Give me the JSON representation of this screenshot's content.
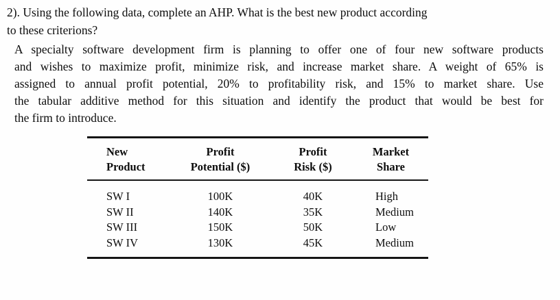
{
  "question": {
    "lines": [
      "2). Using the following data, complete an AHP.  What is the best new product according",
      "to these criterions?"
    ]
  },
  "problem_statement": {
    "lines": [
      "A specialty software development firm is planning to offer one of four new software products",
      "and wishes to maximize profit, minimize risk, and increase market share. A weight of 65% is",
      "assigned to annual profit potential, 20% to profitability risk, and 15% to market share. Use",
      "the tabular additive method for this situation and identify the product that would be best for",
      "the firm to introduce."
    ]
  },
  "table": {
    "headers": [
      {
        "line1": "New",
        "line2": "Product"
      },
      {
        "line1": "Profit",
        "line2": "Potential ($)"
      },
      {
        "line1": "Profit",
        "line2": "Risk ($)"
      },
      {
        "line1": "Market",
        "line2": "Share"
      }
    ],
    "rows": [
      {
        "product": "SW I",
        "profit_potential": "100K",
        "profit_risk": "40K",
        "market_share": "High"
      },
      {
        "product": "SW II",
        "profit_potential": "140K",
        "profit_risk": "35K",
        "market_share": "Medium"
      },
      {
        "product": "SW III",
        "profit_potential": "150K",
        "profit_risk": "50K",
        "market_share": "Low"
      },
      {
        "product": "SW IV",
        "profit_potential": "130K",
        "profit_risk": "45K",
        "market_share": "Medium"
      }
    ]
  }
}
